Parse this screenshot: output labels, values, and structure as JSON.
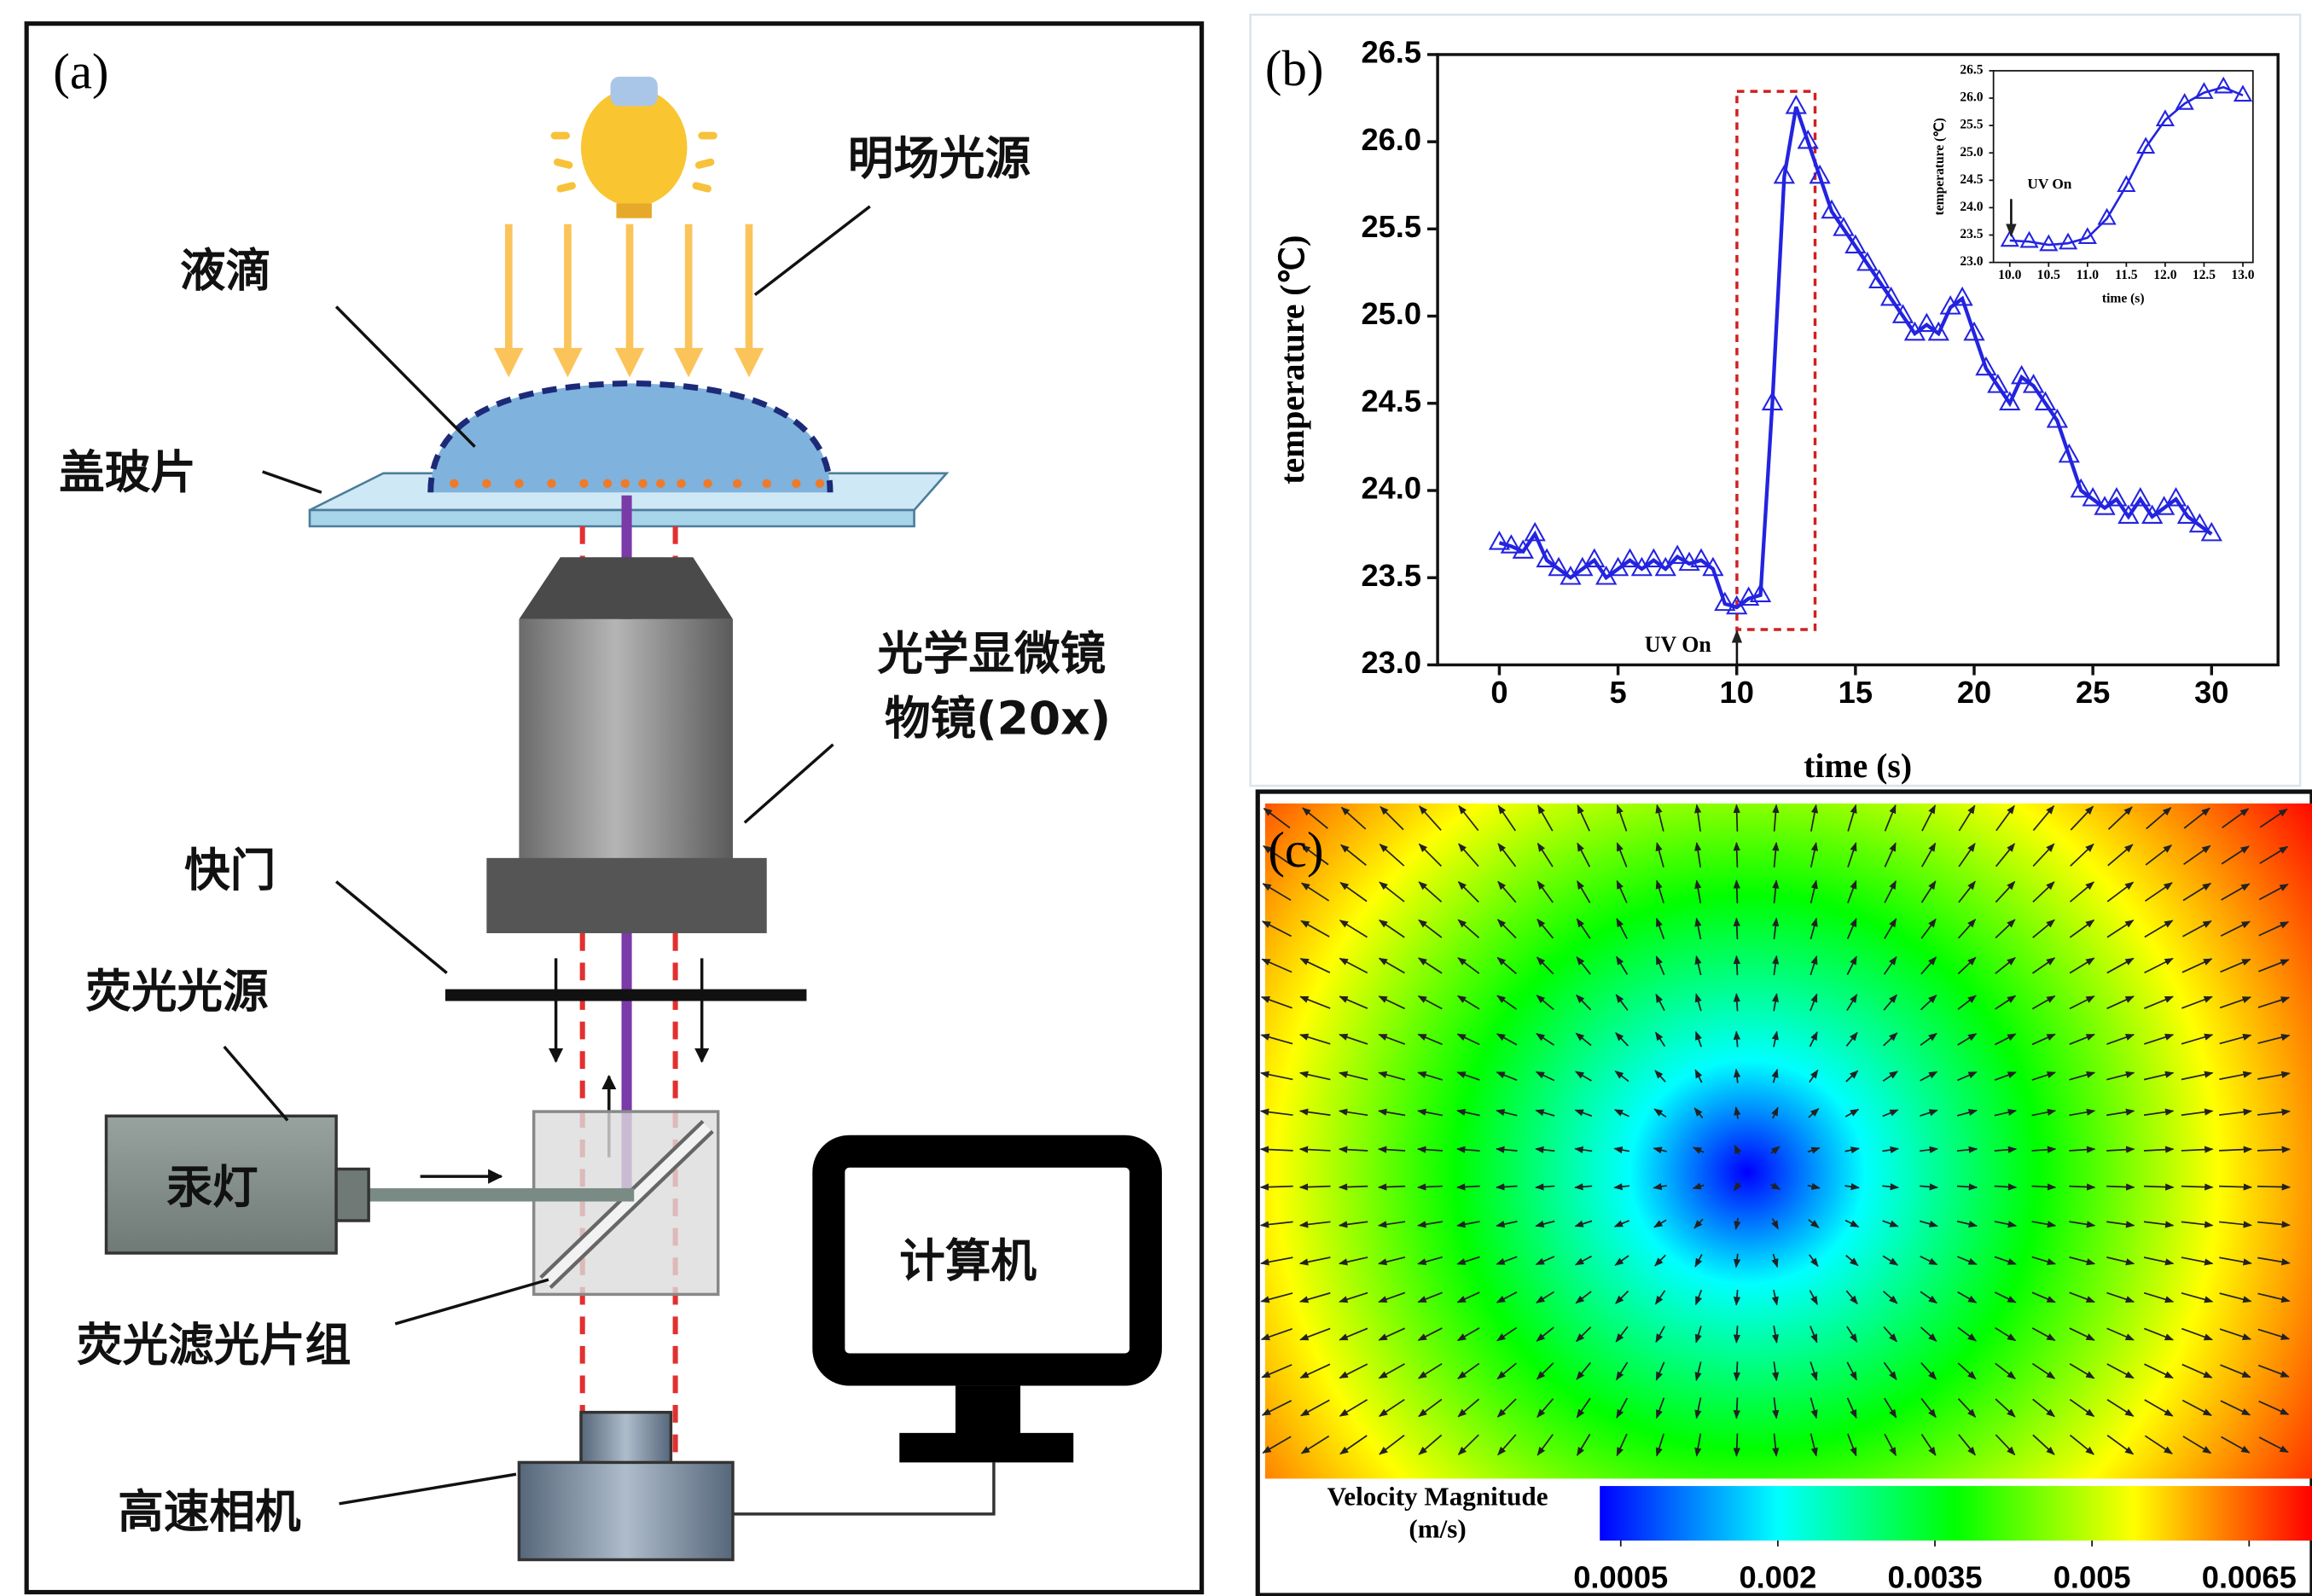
{
  "diagram": {
    "panel_label": "(a)",
    "labels": {
      "light_source": "明场光源",
      "droplet": "液滴",
      "coverslip": "盖玻片",
      "objective_1": "光学显微镜",
      "objective_2": "物镜(20x)",
      "shutter": "快门",
      "fluorescence_source": "荧光光源",
      "mercury_lamp": "汞灯",
      "filter_set": "荧光滤光片组",
      "computer": "计算机",
      "camera": "高速相机"
    }
  },
  "chart_data": [
    {
      "type": "line",
      "panel_label": "(b)",
      "xlabel": "time (s)",
      "ylabel": "temperature (℃)",
      "annotation": "UV On",
      "marker": "triangle",
      "color": "#2323e0",
      "x": [
        0,
        0.5,
        1,
        1.5,
        2,
        2.5,
        3,
        3.5,
        4,
        4.5,
        5,
        5.5,
        6,
        6.5,
        7,
        7.5,
        8,
        8.5,
        9,
        9.5,
        10,
        10.5,
        11,
        11.5,
        12,
        12.5,
        13,
        13.5,
        14,
        14.5,
        15,
        15.5,
        16,
        16.5,
        17,
        17.5,
        18,
        18.5,
        19,
        19.5,
        20,
        20.5,
        21,
        21.5,
        22,
        22.5,
        23,
        23.5,
        24,
        24.5,
        25,
        25.5,
        26,
        26.5,
        27,
        27.5,
        28,
        28.5,
        29,
        29.5,
        30
      ],
      "values": [
        23.7,
        23.68,
        23.65,
        23.75,
        23.6,
        23.55,
        23.5,
        23.55,
        23.6,
        23.5,
        23.55,
        23.6,
        23.55,
        23.6,
        23.55,
        23.62,
        23.58,
        23.6,
        23.55,
        23.35,
        23.33,
        23.38,
        23.4,
        24.5,
        25.8,
        26.2,
        26.0,
        25.8,
        25.6,
        25.5,
        25.4,
        25.3,
        25.2,
        25.1,
        25.0,
        24.9,
        24.95,
        24.9,
        25.05,
        25.1,
        24.9,
        24.7,
        24.6,
        24.5,
        24.65,
        24.6,
        24.5,
        24.4,
        24.2,
        24.0,
        23.95,
        23.9,
        23.95,
        23.85,
        23.95,
        23.85,
        23.9,
        23.95,
        23.85,
        23.8,
        23.75
      ],
      "xlim": [
        -2.6,
        32.8
      ],
      "ylim": [
        23.0,
        26.5
      ],
      "xticks": [
        0,
        5,
        10,
        15,
        20,
        25,
        30
      ],
      "yticks": [
        {
          "value": 23,
          "label": "23.0"
        },
        23.5,
        {
          "value": 24,
          "label": "24.0"
        },
        24.5,
        {
          "value": 25,
          "label": "25.0"
        },
        25.5,
        {
          "value": 26,
          "label": "26.0"
        },
        26.5
      ]
    },
    {
      "type": "line",
      "xlabel": "time (s)",
      "ylabel": "temperature (℃)",
      "annotation": "UV On",
      "marker": "triangle",
      "color": "#2323e0",
      "x": [
        10,
        10.25,
        10.5,
        10.75,
        11,
        11.25,
        11.5,
        11.75,
        12,
        12.25,
        12.5,
        12.75,
        13
      ],
      "values": [
        23.4,
        23.38,
        23.32,
        23.35,
        23.45,
        23.8,
        24.4,
        25.1,
        25.6,
        25.9,
        26.1,
        26.2,
        26.05
      ],
      "xlim": [
        9.79,
        13.13
      ],
      "ylim": [
        23.0,
        26.5
      ],
      "xticks": [
        {
          "value": 10,
          "label": "10.0"
        },
        10.5,
        {
          "value": 11,
          "label": "11.0"
        },
        11.5,
        {
          "value": 12,
          "label": "12.0"
        },
        12.5,
        {
          "value": 13,
          "label": "13.0"
        }
      ],
      "yticks": [
        {
          "value": 23,
          "label": "23.0"
        },
        23.5,
        {
          "value": 24,
          "label": "24.0"
        },
        24.5,
        {
          "value": 25,
          "label": "25.0"
        },
        25.5,
        {
          "value": 26,
          "label": "26.0"
        },
        26.5
      ]
    },
    {
      "type": "colormap",
      "panel_label": "(c)",
      "colorbar_title": [
        "Velocity Magnitude",
        "(m/s)"
      ],
      "colors": [
        "#0000ff",
        "#00ffff",
        "#00ff00",
        "#ffff00",
        "#ff0000"
      ],
      "clim": [
        0.0003,
        0.0071
      ],
      "cticks": [
        0.0005,
        0.002,
        0.0035,
        0.005,
        0.0065
      ]
    }
  ]
}
